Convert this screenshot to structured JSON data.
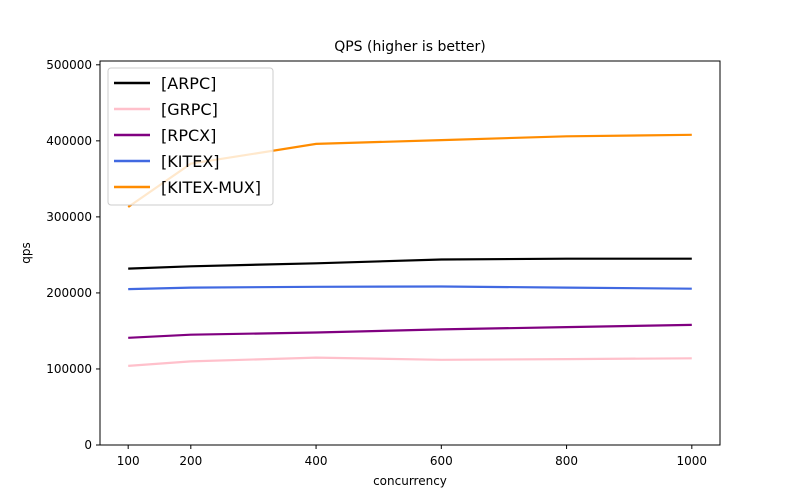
{
  "chart_data": {
    "type": "line",
    "title": "QPS (higher is better)",
    "xlabel": "concurrency",
    "ylabel": "qps",
    "x": [
      100,
      200,
      400,
      600,
      800,
      1000
    ],
    "xticks": [
      "100",
      "200",
      "400",
      "600",
      "800",
      "1000"
    ],
    "yticks": [
      0,
      100000,
      200000,
      300000,
      400000,
      500000
    ],
    "ylim": [
      0,
      505000
    ],
    "legend_position": "top-left",
    "series": [
      {
        "name": "[ARPC]",
        "color": "#000000",
        "values": [
          232000,
          235000,
          239000,
          244000,
          245000,
          245000
        ]
      },
      {
        "name": "[GRPC]",
        "color": "#ffc0cb",
        "values": [
          104000,
          110000,
          115000,
          112000,
          113000,
          114000
        ]
      },
      {
        "name": "[RPCX]",
        "color": "#800080",
        "values": [
          141000,
          145000,
          148000,
          152000,
          155000,
          158000
        ]
      },
      {
        "name": "[KITEX]",
        "color": "#4169e1",
        "values": [
          205000,
          207000,
          208000,
          208500,
          207000,
          205500
        ]
      },
      {
        "name": "[KITEX-MUX]",
        "color": "#ff8c00",
        "values": [
          313000,
          370000,
          396000,
          401000,
          406000,
          408000
        ]
      }
    ]
  }
}
